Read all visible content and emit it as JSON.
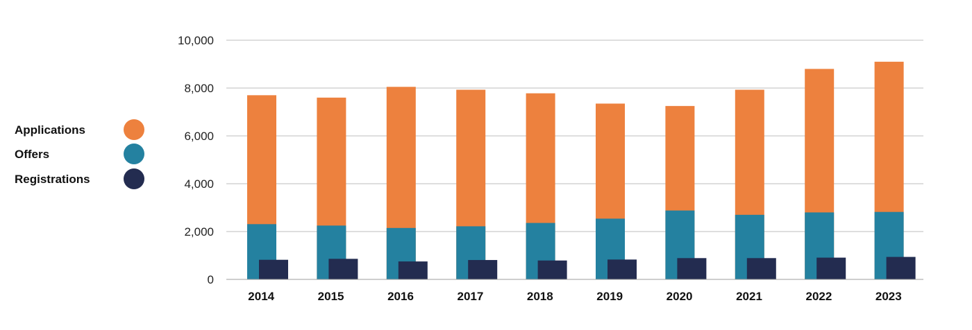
{
  "chart_data": {
    "type": "bar",
    "categories": [
      "2014",
      "2015",
      "2016",
      "2017",
      "2018",
      "2019",
      "2020",
      "2021",
      "2022",
      "2023"
    ],
    "series": [
      {
        "name": "Applications",
        "color": "#ED813E",
        "values": [
          7700,
          7600,
          8050,
          7930,
          7780,
          7350,
          7250,
          7930,
          8800,
          9100
        ]
      },
      {
        "name": "Offers",
        "color": "#2481A0",
        "values": [
          2310,
          2250,
          2150,
          2220,
          2360,
          2540,
          2880,
          2700,
          2800,
          2820
        ]
      },
      {
        "name": "Registrations",
        "color": "#232C50",
        "values": [
          820,
          860,
          750,
          810,
          790,
          830,
          890,
          890,
          910,
          940
        ]
      }
    ],
    "ylim": [
      0,
      10000
    ],
    "yticks": [
      "0",
      "2,000",
      "4,000",
      "6,000",
      "8,000",
      "10,000"
    ],
    "ytick_values": [
      0,
      2000,
      4000,
      6000,
      8000,
      10000
    ],
    "title": "",
    "xlabel": "",
    "ylabel": "",
    "grid": true,
    "legend_position": "left"
  }
}
